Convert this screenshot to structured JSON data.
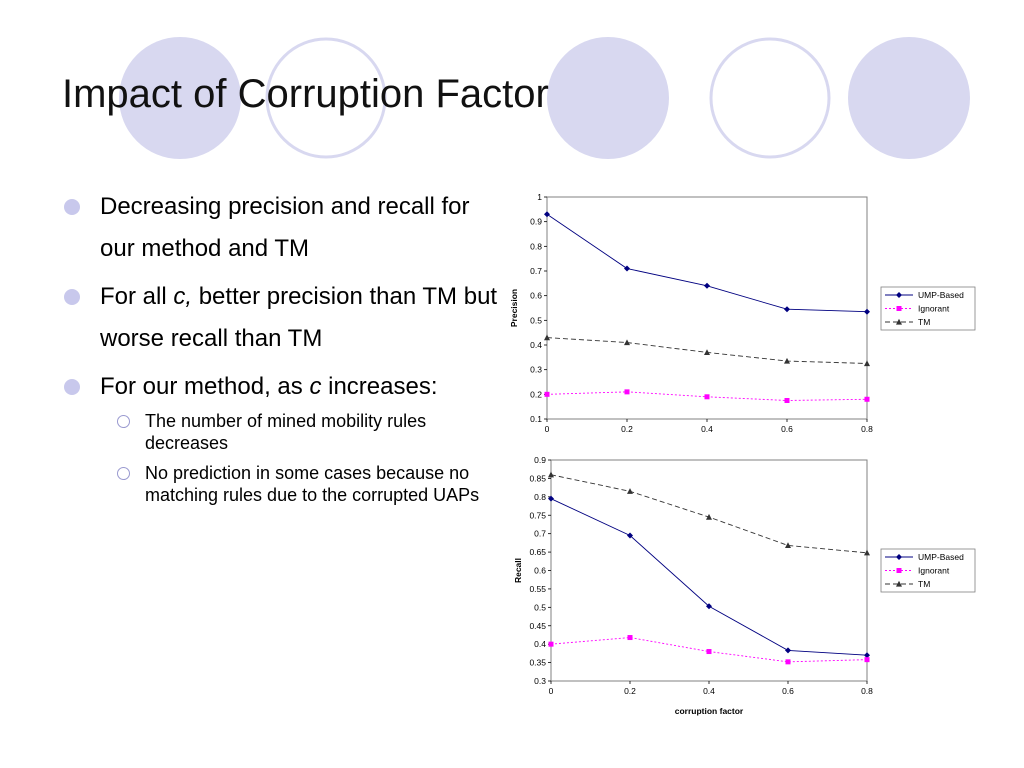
{
  "slide": {
    "title": "Impact of Corruption Factor",
    "bullets": [
      {
        "text": "Decreasing precision and recall for our method and TM",
        "parts": []
      },
      {
        "text": "",
        "parts": [
          "For all ",
          "c,",
          " better precision than TM but worse recall than TM"
        ]
      },
      {
        "text": "",
        "parts": [
          "For our method, as ",
          "c",
          " increases:"
        ],
        "subbullets": [
          "The number of mined mobility rules decreases",
          "No prediction in some cases because no matching rules due to the corrupted UAPs"
        ]
      }
    ]
  },
  "colors": {
    "circle_fill": "#d8d8f0",
    "circle_stroke": "#d8d8f0",
    "ump": "#000080",
    "ignorant": "#ff00ff",
    "tm": "#333333"
  },
  "chart_data": [
    {
      "type": "line",
      "title": "",
      "xlabel": "",
      "ylabel": "Precision",
      "x": [
        0,
        0.2,
        0.4,
        0.6,
        0.8
      ],
      "xticks": [
        "0",
        "0.2",
        "0.4",
        "0.6",
        "0.8"
      ],
      "yticks": [
        "0.1",
        "0.2",
        "0.3",
        "0.4",
        "0.5",
        "0.6",
        "0.7",
        "0.8",
        "0.9",
        "1"
      ],
      "xlim": [
        0,
        0.8
      ],
      "ylim": [
        0.1,
        1
      ],
      "legend_position": "right",
      "series": [
        {
          "name": "UMP-Based",
          "values": [
            0.93,
            0.71,
            0.64,
            0.545,
            0.535
          ]
        },
        {
          "name": "Ignorant",
          "values": [
            0.2,
            0.21,
            0.19,
            0.175,
            0.18
          ]
        },
        {
          "name": "TM",
          "values": [
            0.43,
            0.41,
            0.37,
            0.335,
            0.325
          ]
        }
      ]
    },
    {
      "type": "line",
      "title": "",
      "xlabel": "corruption factor",
      "ylabel": "Recall",
      "x": [
        0,
        0.2,
        0.4,
        0.6,
        0.8
      ],
      "xticks": [
        "0",
        "0.2",
        "0.4",
        "0.6",
        "0.8"
      ],
      "yticks": [
        "0.3",
        "0.35",
        "0.4",
        "0.45",
        "0.5",
        "0.55",
        "0.6",
        "0.65",
        "0.7",
        "0.75",
        "0.8",
        "0.85",
        "0.9"
      ],
      "xlim": [
        0,
        0.8
      ],
      "ylim": [
        0.3,
        0.9
      ],
      "legend_position": "right",
      "series": [
        {
          "name": "UMP-Based",
          "values": [
            0.795,
            0.695,
            0.503,
            0.383,
            0.37
          ]
        },
        {
          "name": "Ignorant",
          "values": [
            0.4,
            0.418,
            0.38,
            0.352,
            0.358
          ]
        },
        {
          "name": "TM",
          "values": [
            0.86,
            0.815,
            0.745,
            0.668,
            0.648
          ]
        }
      ]
    }
  ]
}
